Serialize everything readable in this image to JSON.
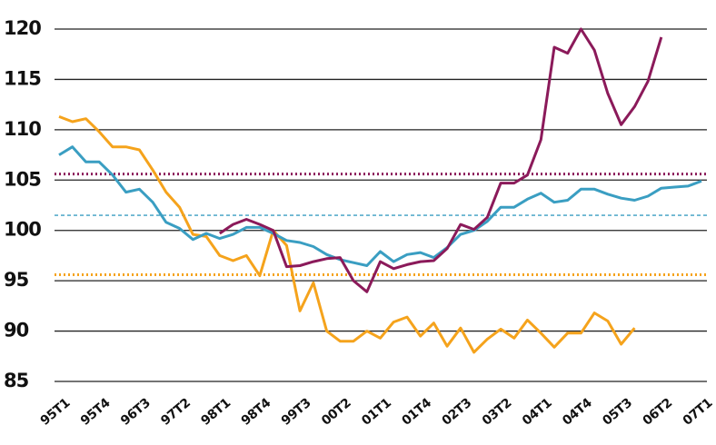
{
  "chart_data": {
    "type": "line",
    "categories": [
      "95T1",
      null,
      null,
      "95T4",
      null,
      null,
      "96T3",
      null,
      null,
      "97T2",
      null,
      null,
      "98T1",
      null,
      null,
      "98T4",
      null,
      null,
      "99T3",
      null,
      null,
      "00T2",
      null,
      null,
      "01T1",
      null,
      null,
      "01T4",
      null,
      null,
      "02T3",
      null,
      null,
      "03T2",
      null,
      null,
      "04T1",
      null,
      null,
      "04T4",
      null,
      null,
      "05T3",
      null,
      null,
      "06T2",
      null,
      null,
      "07T1"
    ],
    "series": [
      {
        "color": "#3a9ec2",
        "values": [
          107.5,
          108.3,
          106.8,
          106.8,
          105.5,
          103.8,
          104.1,
          102.8,
          100.8,
          100.2,
          99.1,
          99.7,
          99.2,
          99.6,
          100.3,
          100.3,
          99.7,
          99.0,
          98.8,
          98.4,
          97.6,
          97.1,
          96.8,
          96.5,
          97.9,
          96.9,
          97.6,
          97.8,
          97.3,
          98.3,
          99.6,
          100.0,
          100.9,
          102.3,
          102.3,
          103.1,
          103.7,
          102.8,
          103.0,
          104.1,
          104.1,
          103.6,
          103.2,
          103.0,
          103.4,
          104.2,
          104.3,
          104.4,
          104.9
        ]
      },
      {
        "color": "#f5a31c",
        "values": [
          111.3,
          110.8,
          111.1,
          109.8,
          108.3,
          108.3,
          108.0,
          106.0,
          103.8,
          102.3,
          99.6,
          99.4,
          97.5,
          97.0,
          97.5,
          95.5,
          100.0,
          98.5,
          92.0,
          94.8,
          90.0,
          89.0,
          89.0,
          90.0,
          89.3,
          90.9,
          91.4,
          89.5,
          90.8,
          88.5,
          90.3,
          87.9,
          89.2,
          90.2,
          89.3,
          91.1,
          89.8,
          88.4,
          89.8,
          89.8,
          91.8,
          91.0,
          88.7,
          90.3,
          null,
          null,
          null,
          null,
          null
        ]
      },
      {
        "color": "#8b1a5a",
        "values": [
          null,
          null,
          null,
          null,
          null,
          null,
          null,
          null,
          null,
          null,
          null,
          null,
          99.7,
          100.6,
          101.1,
          100.6,
          100.0,
          96.4,
          96.5,
          96.9,
          97.2,
          97.3,
          95.0,
          93.9,
          96.9,
          96.2,
          96.6,
          96.9,
          97.0,
          98.2,
          100.6,
          100.1,
          101.3,
          104.7,
          104.7,
          105.5,
          109.0,
          118.2,
          117.6,
          120.0,
          117.9,
          113.6,
          110.5,
          112.3,
          114.8,
          119.2,
          null,
          null,
          null
        ]
      }
    ],
    "reference_lines": [
      {
        "value": 105.6,
        "color": "#8b1a5a",
        "style": "dotted"
      },
      {
        "value": 101.5,
        "color": "#3a9ec2",
        "style": "dashed"
      },
      {
        "value": 95.6,
        "color": "#f5a31c",
        "style": "dotted"
      }
    ],
    "ylim": [
      85,
      120
    ],
    "yticks": [
      85,
      90,
      95,
      100,
      105,
      110,
      115,
      120
    ],
    "grid": true
  }
}
